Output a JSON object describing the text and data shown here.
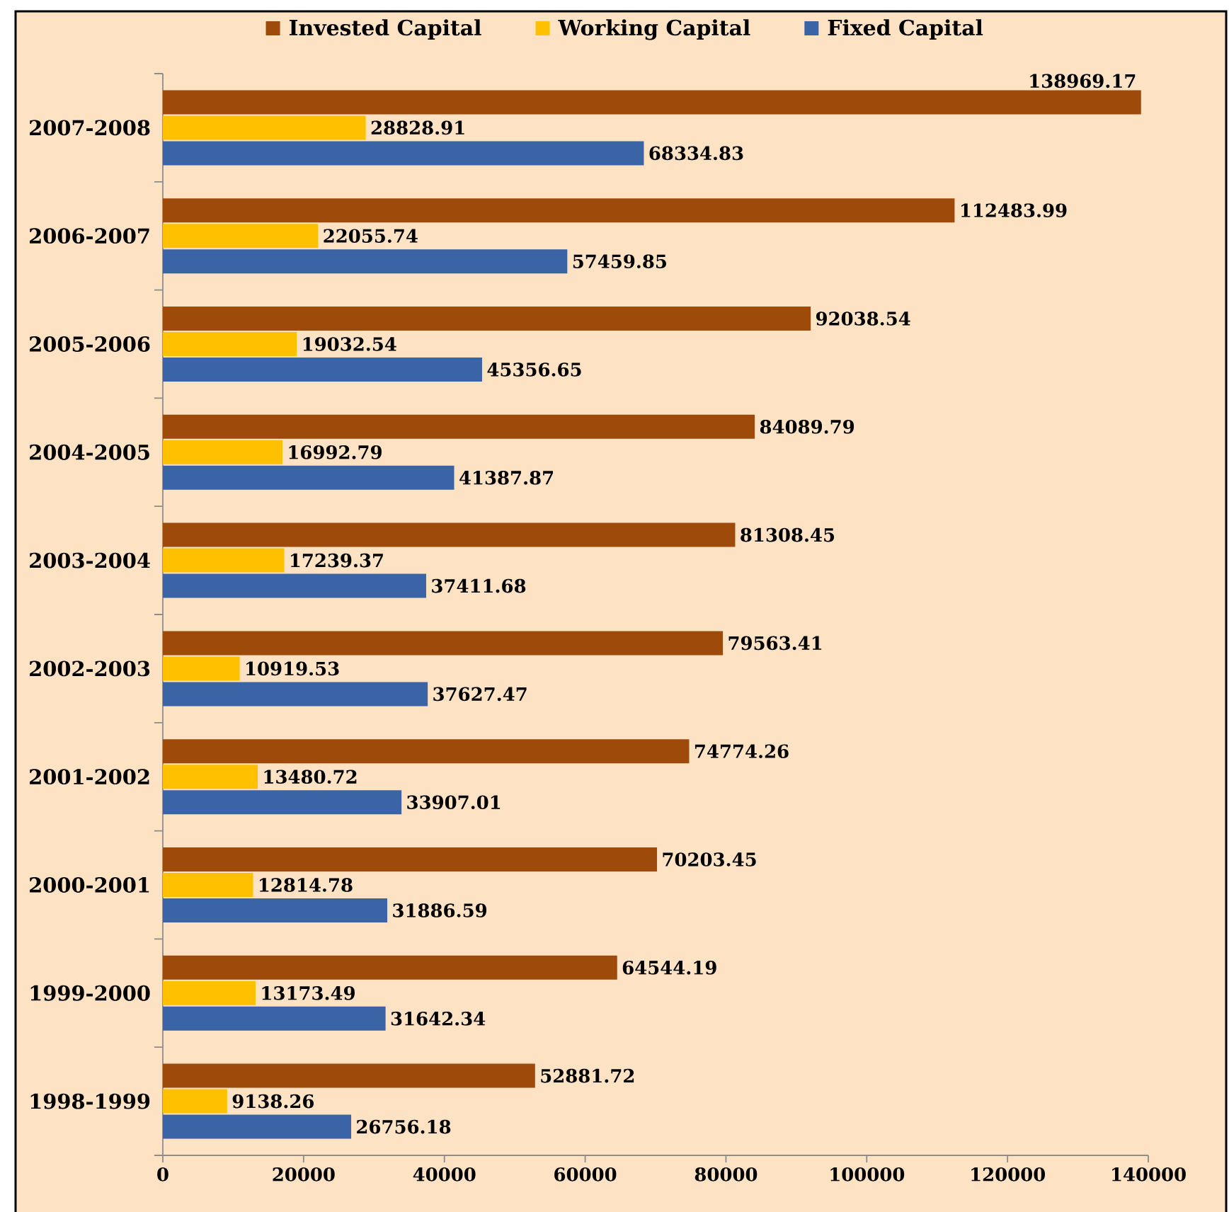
{
  "chart_data": {
    "type": "bar",
    "orientation": "horizontal",
    "categories": [
      "2007-2008",
      "2006-2007",
      "2005-2006",
      "2004-2005",
      "2003-2004",
      "2002-2003",
      "2001-2002",
      "2000-2001",
      "1999-2000",
      "1998-1999"
    ],
    "series": [
      {
        "name": "Invested Capital",
        "color": "#9e4a0a",
        "values": [
          138969.17,
          112483.99,
          92038.54,
          84089.79,
          81308.45,
          79563.41,
          74774.26,
          70203.45,
          64544.19,
          52881.72
        ]
      },
      {
        "name": "Working Capital",
        "color": "#ffc000",
        "values": [
          28828.91,
          22055.74,
          19032.54,
          16992.79,
          17239.37,
          10919.53,
          13480.72,
          12814.78,
          13173.49,
          9138.26
        ]
      },
      {
        "name": "Fixed Capital",
        "color": "#3b64a6",
        "values": [
          68334.83,
          57459.85,
          45356.65,
          41387.87,
          37411.68,
          37627.47,
          33907.01,
          31886.59,
          31642.34,
          26756.18
        ]
      }
    ],
    "xlim": [
      0,
      140000
    ],
    "xticks": [
      0,
      20000,
      40000,
      60000,
      80000,
      100000,
      120000,
      140000
    ],
    "data_labels": true,
    "legend": "top"
  }
}
